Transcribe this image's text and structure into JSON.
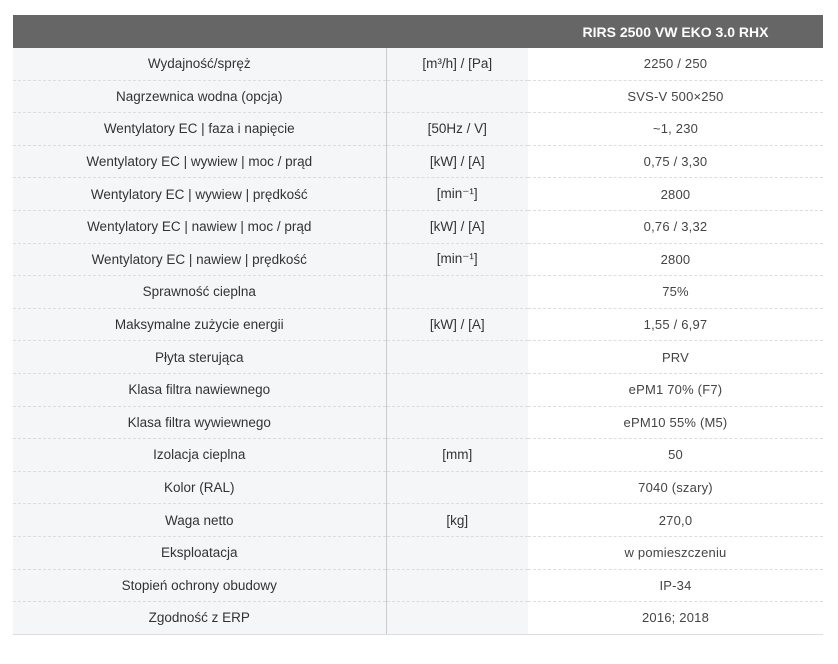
{
  "header": {
    "col1": "",
    "col2": "",
    "model": "RIRS 2500 VW EKO 3.0 RHX"
  },
  "rows": [
    {
      "label": "Wydajność/spręż",
      "unit": "[m³/h] / [Pa]",
      "value": "2250 / 250"
    },
    {
      "label": "Nagrzewnica wodna (opcja)",
      "unit": "",
      "value": "SVS-V 500×250"
    },
    {
      "label": "Wentylatory EC | faza i napięcie",
      "unit": "[50Hz / V]",
      "value": "~1, 230"
    },
    {
      "label": "Wentylatory EC | wywiew | moc / prąd",
      "unit": "[kW] / [A]",
      "value": "0,75 / 3,30"
    },
    {
      "label": "Wentylatory EC | wywiew | prędkość",
      "unit": "[min⁻¹]",
      "value": "2800"
    },
    {
      "label": "Wentylatory EC | nawiew | moc / prąd",
      "unit": "[kW] / [A]",
      "value": "0,76 / 3,32"
    },
    {
      "label": "Wentylatory EC | nawiew | prędkość",
      "unit": "[min⁻¹]",
      "value": "2800"
    },
    {
      "label": "Sprawność cieplna",
      "unit": "",
      "value": "75%"
    },
    {
      "label": "Maksymalne zużycie energii",
      "unit": "[kW] / [A]",
      "value": "1,55 / 6,97"
    },
    {
      "label": "Płyta sterująca",
      "unit": "",
      "value": "PRV"
    },
    {
      "label": "Klasa filtra nawiewnego",
      "unit": "",
      "value": "ePM1 70% (F7)"
    },
    {
      "label": "Klasa filtra wywiewnego",
      "unit": "",
      "value": "ePM10 55% (M5)"
    },
    {
      "label": "Izolacja cieplna",
      "unit": "[mm]",
      "value": "50"
    },
    {
      "label": "Kolor (RAL)",
      "unit": "",
      "value": "7040 (szary)"
    },
    {
      "label": "Waga netto",
      "unit": "[kg]",
      "value": "270,0"
    },
    {
      "label": "Eksploatacja",
      "unit": "",
      "value": "w pomieszczeniu"
    },
    {
      "label": "Stopień ochrony obudowy",
      "unit": "",
      "value": "IP-34"
    },
    {
      "label": "Zgodność z ERP",
      "unit": "",
      "value": "2016; 2018"
    }
  ]
}
